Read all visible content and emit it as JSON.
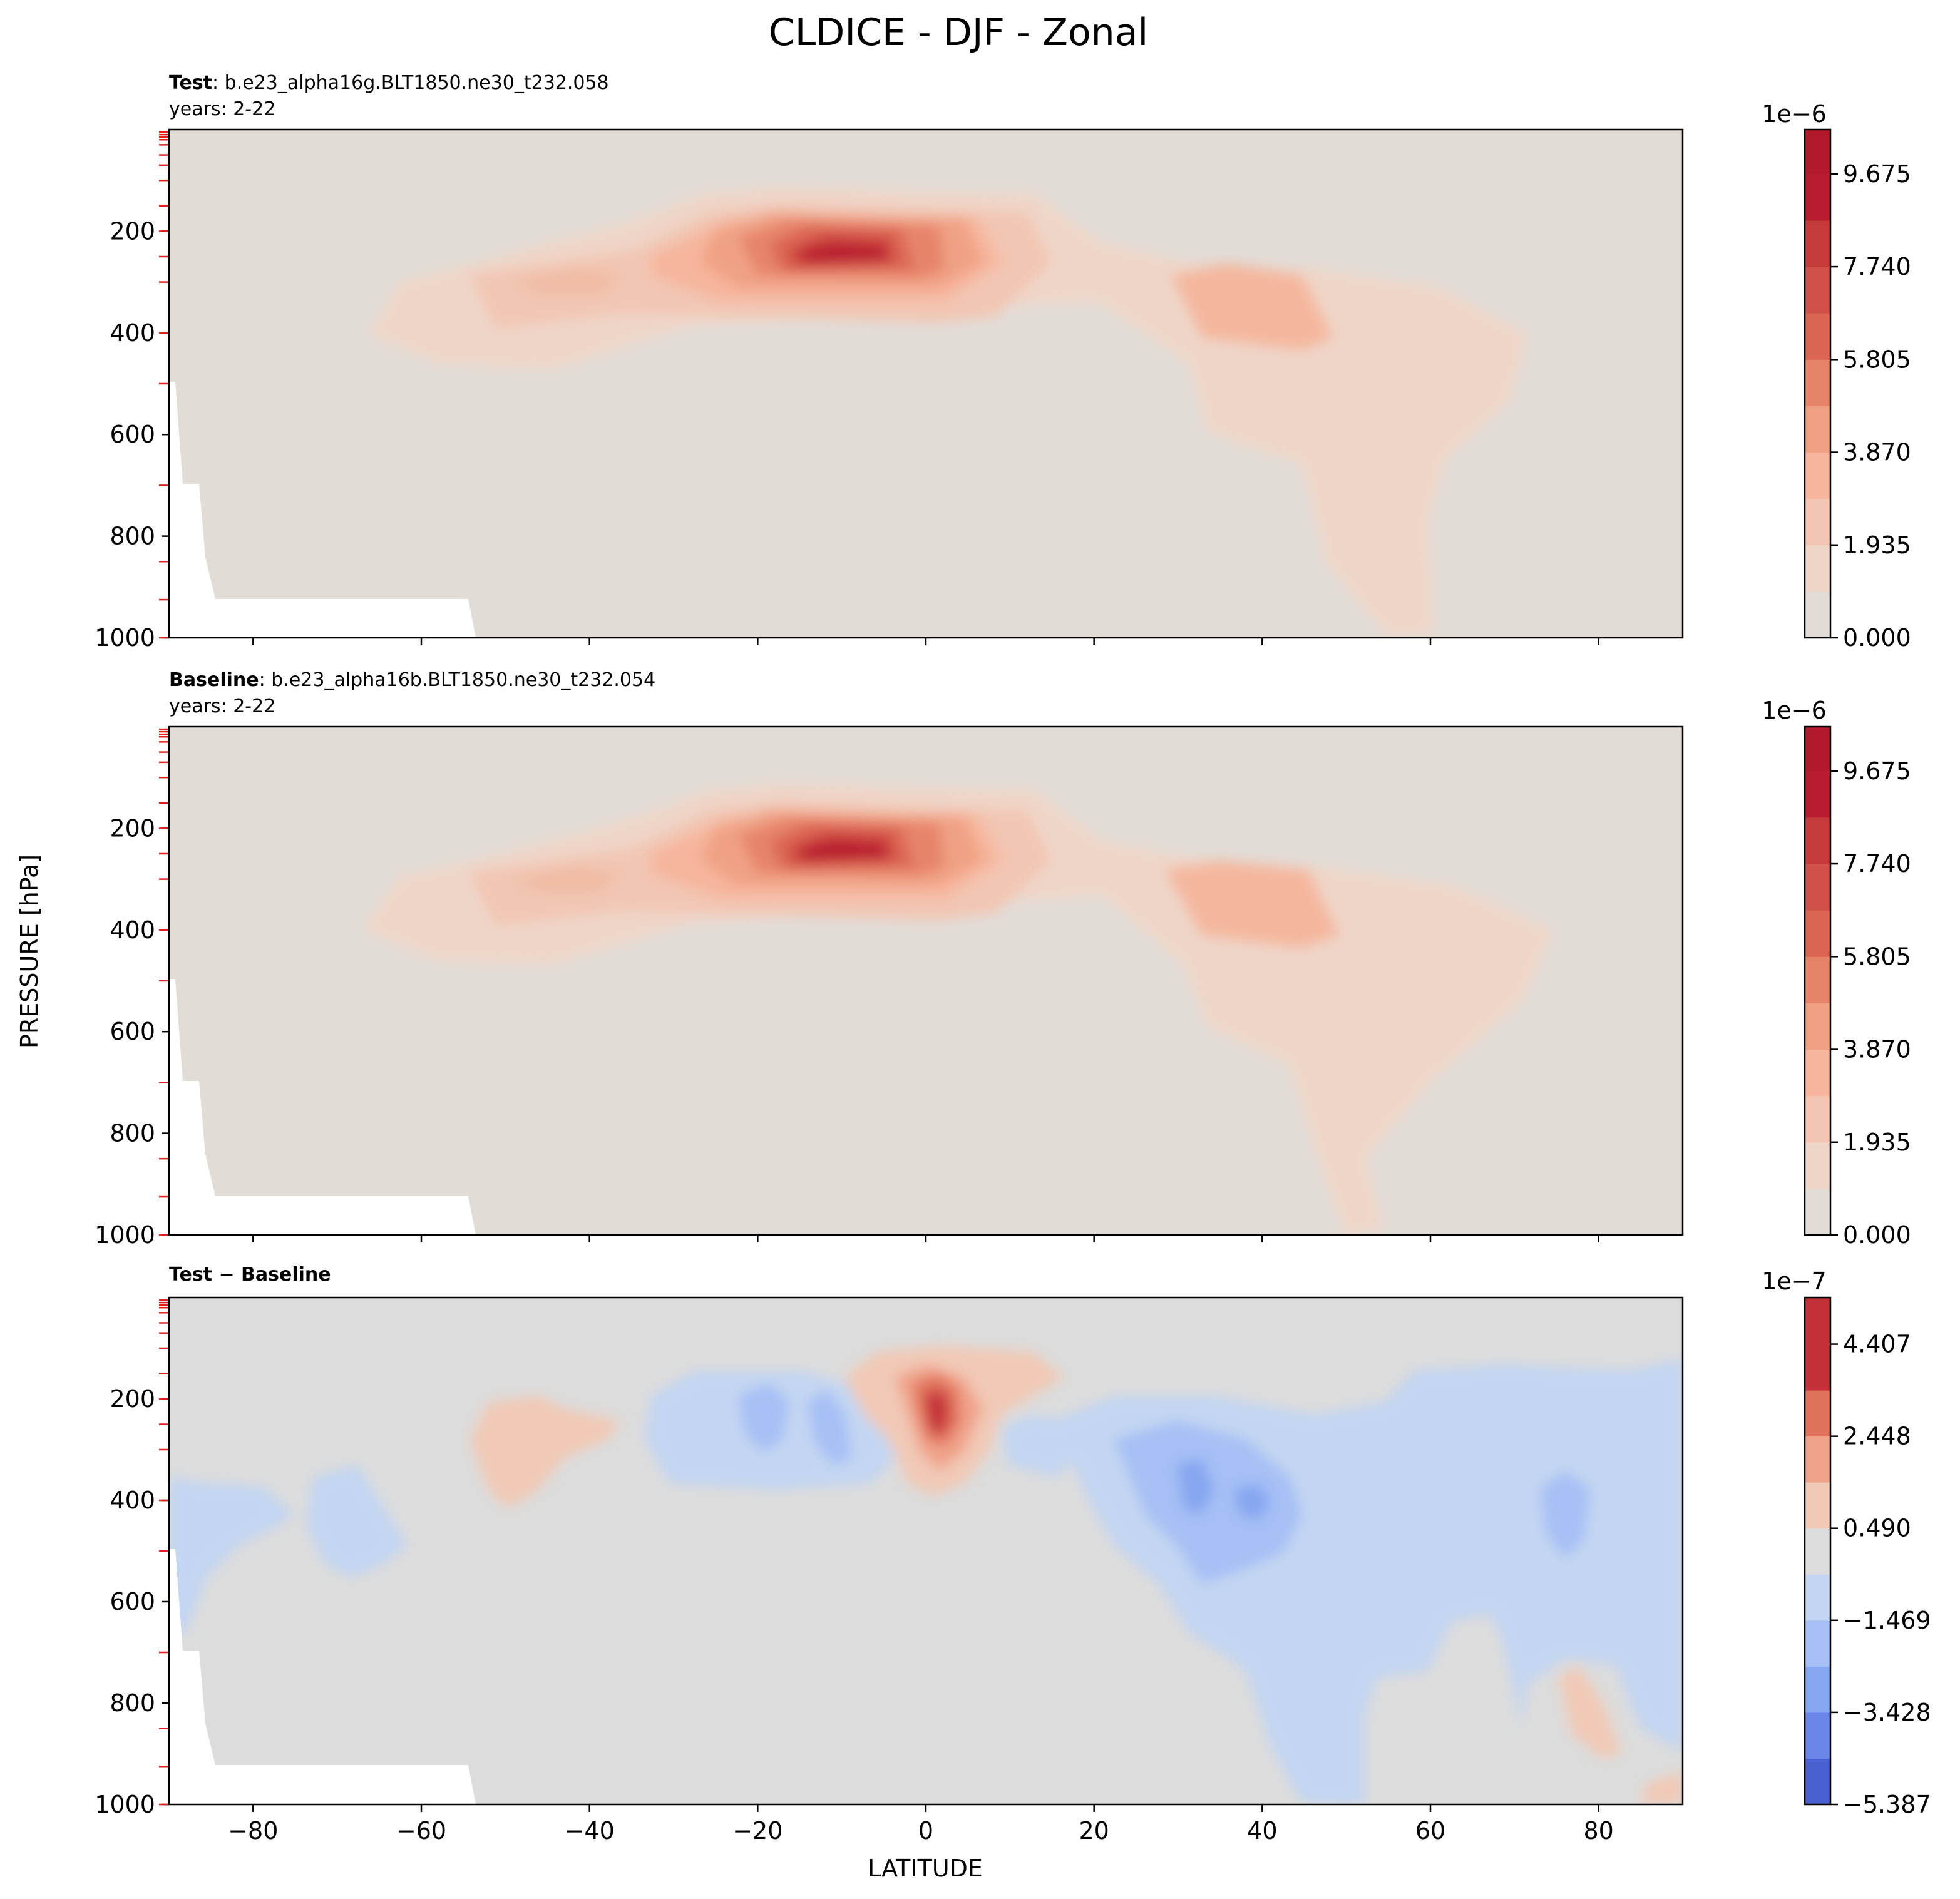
{
  "figure": {
    "title": "CLDICE - DJF - Zonal",
    "xlabel": "LATITUDE",
    "ylabel": "PRESSURE [hPa]"
  },
  "chart_data": [
    {
      "type": "heatmap",
      "panel": "test",
      "label_bold": "Test",
      "label_rest": ": b.e23_alpha16g.BLT1850.ne30_t232.058",
      "subtitle": "years: 2-22",
      "x": {
        "label": "LATITUDE",
        "range": [
          -90,
          90
        ],
        "ticks": [
          -80,
          -60,
          -40,
          -20,
          0,
          20,
          40,
          60,
          80
        ],
        "tick_labels_shown": false
      },
      "y": {
        "label": "PRESSURE [hPa]",
        "range": [
          1000,
          0
        ],
        "inverted": true,
        "ticks": [
          200,
          400,
          600,
          800,
          1000
        ]
      },
      "colorbar": {
        "colormap": "Reds",
        "offset_text": "1e−6",
        "range": [
          0.0,
          10.6
        ],
        "levels": [
          0,
          0.9675,
          1.935,
          2.9025,
          3.87,
          4.8375,
          5.805,
          6.7725,
          7.74,
          8.7075,
          9.675,
          10.6425
        ],
        "tick_values": [
          0.0,
          1.935,
          3.87,
          5.805,
          7.74,
          9.675
        ],
        "tick_labels": [
          "0.000",
          "1.935",
          "3.870",
          "5.805",
          "7.740",
          "9.675"
        ]
      },
      "features": [
        {
          "desc": "main upper-tropospheric maximum",
          "lat": -9,
          "pressure": 245,
          "value": 10.3
        },
        {
          "desc": "northern mid-latitude maximum",
          "lat": 40,
          "pressure": 360,
          "value": 3.4
        },
        {
          "desc": "southern mid-latitude lobe",
          "lat": -45,
          "pressure": 300,
          "value": 2.9
        }
      ],
      "missing_region": {
        "desc": "Antarctic topography, no data",
        "lat_range": [
          -90,
          -53
        ],
        "pressure_range": [
          500,
          1000
        ]
      }
    },
    {
      "type": "heatmap",
      "panel": "baseline",
      "label_bold": "Baseline",
      "label_rest": ": b.e23_alpha16b.BLT1850.ne30_t232.054",
      "subtitle": "years: 2-22",
      "x": {
        "label": "LATITUDE",
        "range": [
          -90,
          90
        ],
        "ticks": [
          -80,
          -60,
          -40,
          -20,
          0,
          20,
          40,
          60,
          80
        ],
        "tick_labels_shown": false
      },
      "y": {
        "label": "PRESSURE [hPa]",
        "range": [
          1000,
          0
        ],
        "inverted": true,
        "ticks": [
          200,
          400,
          600,
          800,
          1000
        ]
      },
      "colorbar": {
        "colormap": "Reds",
        "offset_text": "1e−6",
        "range": [
          0.0,
          10.6
        ],
        "levels": [
          0,
          0.9675,
          1.935,
          2.9025,
          3.87,
          4.8375,
          5.805,
          6.7725,
          7.74,
          8.7075,
          9.675,
          10.6425
        ],
        "tick_values": [
          0.0,
          1.935,
          3.87,
          5.805,
          7.74,
          9.675
        ],
        "tick_labels": [
          "0.000",
          "1.935",
          "3.870",
          "5.805",
          "7.740",
          "9.675"
        ]
      },
      "features": [
        {
          "desc": "main upper-tropospheric maximum",
          "lat": -9,
          "pressure": 245,
          "value": 10.3
        },
        {
          "desc": "northern mid-latitude maximum",
          "lat": 40,
          "pressure": 360,
          "value": 3.4
        },
        {
          "desc": "southern mid-latitude lobe",
          "lat": -45,
          "pressure": 300,
          "value": 2.9
        }
      ],
      "missing_region": {
        "desc": "Antarctic topography, no data",
        "lat_range": [
          -90,
          -53
        ],
        "pressure_range": [
          500,
          1000
        ]
      }
    },
    {
      "type": "heatmap",
      "panel": "diff",
      "label_bold": "Test − Baseline",
      "label_rest": "",
      "subtitle": "",
      "x": {
        "label": "LATITUDE",
        "range": [
          -90,
          90
        ],
        "ticks": [
          -80,
          -60,
          -40,
          -20,
          0,
          20,
          40,
          60,
          80
        ],
        "tick_labels_shown": true
      },
      "y": {
        "label": "PRESSURE [hPa]",
        "range": [
          1000,
          0
        ],
        "inverted": true,
        "ticks": [
          200,
          400,
          600,
          800,
          1000
        ]
      },
      "colorbar": {
        "colormap": "coolwarm",
        "offset_text": "1e−7",
        "range": [
          -5.387,
          5.4
        ],
        "levels": [
          -5.387,
          -4.4075,
          -3.428,
          -2.4485,
          -1.469,
          -0.4895,
          0.49,
          1.4695,
          2.448,
          3.4275,
          4.407,
          5.3865
        ],
        "tick_values": [
          -5.387,
          -3.428,
          -1.469,
          0.49,
          2.448,
          4.407
        ],
        "tick_labels": [
          "−5.387",
          "−3.428",
          "−1.469",
          "0.490",
          "2.448",
          "4.407"
        ]
      },
      "features": [
        {
          "desc": "equatorial positive maximum",
          "lat": 1.5,
          "pressure": 230,
          "value": 5.0
        },
        {
          "desc": "northern mid-latitude negative minimum",
          "lat": 35,
          "pressure": 410,
          "value": -3.6
        },
        {
          "desc": "southern tropical negative minimum",
          "lat": -12,
          "pressure": 260,
          "value": -2.8
        },
        {
          "desc": "southern mid-latitude positive lobe",
          "lat": -45,
          "pressure": 280,
          "value": 1.2
        },
        {
          "desc": "northern high-latitude negative minimum",
          "lat": 76,
          "pressure": 420,
          "value": -2.6
        }
      ],
      "missing_region": {
        "desc": "Antarctic topography, no data",
        "lat_range": [
          -90,
          -53
        ],
        "pressure_range": [
          500,
          1000
        ]
      }
    }
  ]
}
